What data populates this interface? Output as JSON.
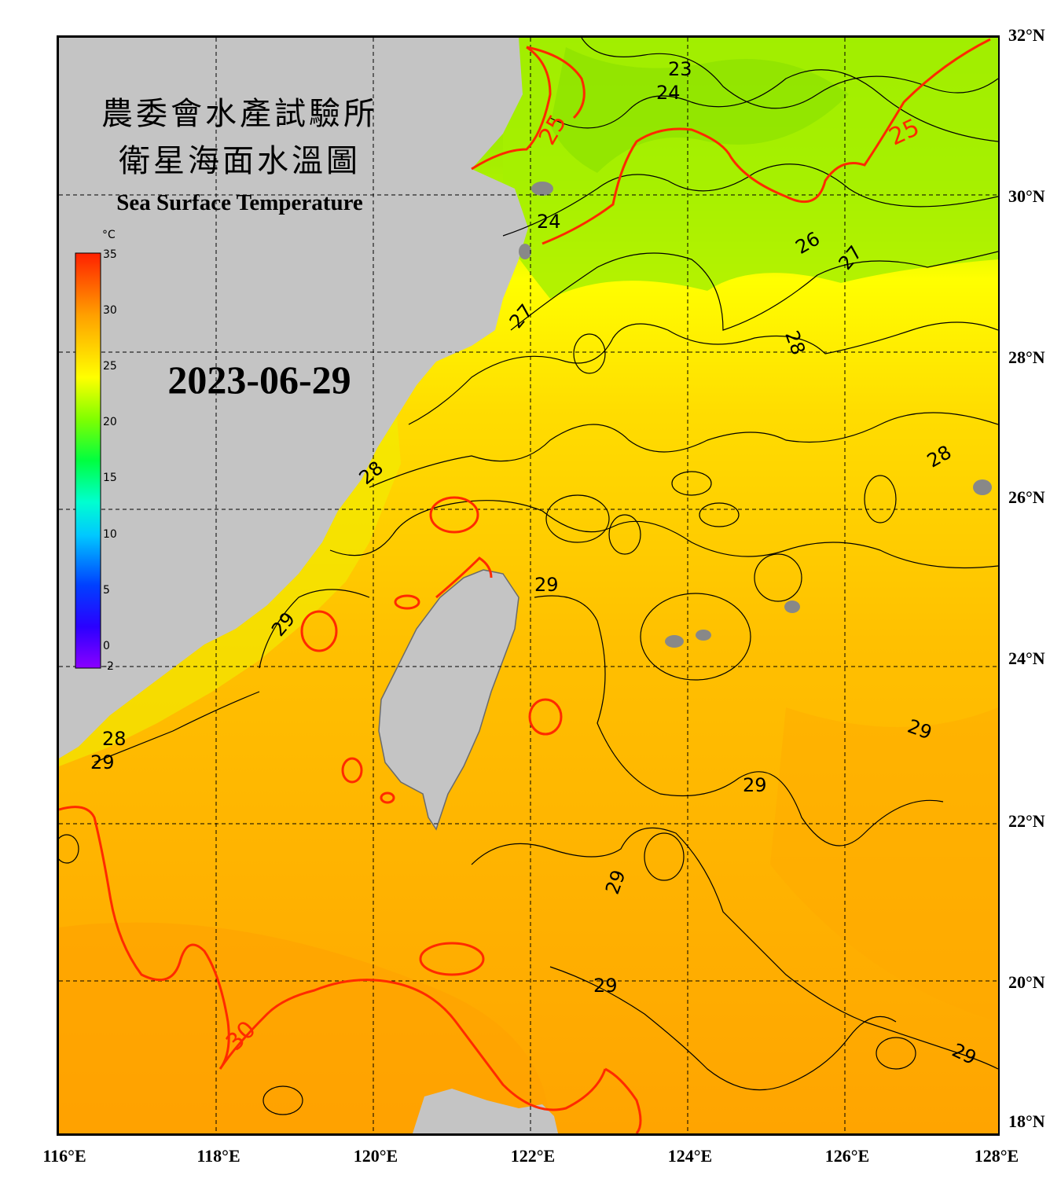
{
  "title": {
    "line1": "農委會水產試驗所",
    "line2": "衛星海面水溫圖",
    "english": "Sea Surface Temperature"
  },
  "date": "2023-06-29",
  "colorbar": {
    "unit": "°C",
    "ticks": [
      "35",
      "30",
      "25",
      "20",
      "15",
      "10",
      "5",
      "0",
      "-2"
    ]
  },
  "axes": {
    "lon_labels": [
      "116°E",
      "118°E",
      "120°E",
      "122°E",
      "124°E",
      "126°E",
      "128°E"
    ],
    "lat_labels": [
      "32°N",
      "30°N",
      "28°N",
      "26°N",
      "24°N",
      "22°N",
      "20°N",
      "18°N"
    ]
  },
  "contour_labels": {
    "c23": "23",
    "c24a": "24",
    "c24b": "24",
    "c25a": "25",
    "c25b": "25",
    "c26": "26",
    "c27a": "27",
    "c27b": "27",
    "c28a": "28",
    "c28b": "28",
    "c28c": "28",
    "c28d": "28",
    "c29a": "29",
    "c29b": "29",
    "c29c": "29",
    "c29d": "29",
    "c29e": "29",
    "c29f": "29",
    "c29g": "29",
    "c29h": "29",
    "c30": "30"
  },
  "colors": {
    "land": "#c4c4c4",
    "warm_sea": "#ffb400",
    "cool_sea": "#8ee000",
    "isotherm_highlight": "#ff2a00"
  }
}
